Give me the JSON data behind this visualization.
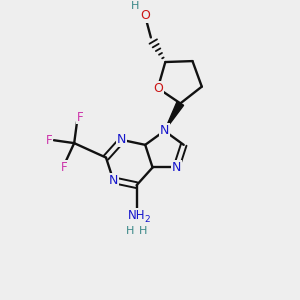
{
  "bg": "#eeeeee",
  "bc": "#111111",
  "Nc": "#1515cc",
  "Oc": "#cc1515",
  "Fc": "#cc33aa",
  "Hc": "#3a8888",
  "figsize": [
    3.0,
    3.0
  ],
  "dpi": 100,
  "xlim": [
    0,
    10
  ],
  "ylim": [
    0,
    10
  ]
}
